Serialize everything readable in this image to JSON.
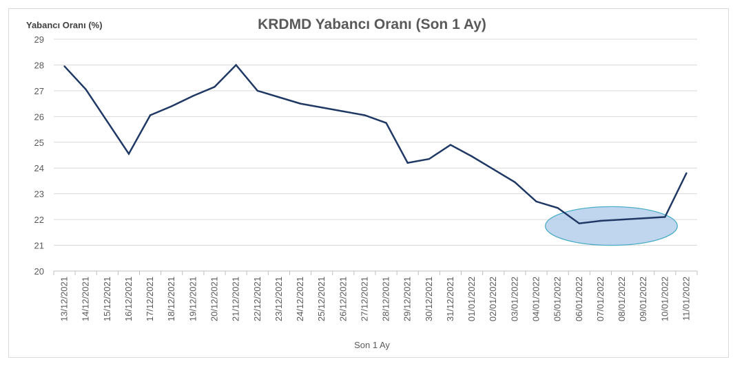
{
  "chart_data": {
    "type": "line",
    "title": "KRDMD Yabancı Oranı (Son 1 Ay)",
    "ylabel": "Yabancı Oranı (%)",
    "xlabel": "Son 1 Ay",
    "ylim": [
      20,
      29
    ],
    "yticks": [
      20,
      21,
      22,
      23,
      24,
      25,
      26,
      27,
      28,
      29
    ],
    "grid": true,
    "categories": [
      "13/12/2021",
      "14/12/2021",
      "15/12/2021",
      "16/12/2021",
      "17/12/2021",
      "18/12/2021",
      "19/12/2021",
      "20/12/2021",
      "21/12/2021",
      "22/12/2021",
      "23/12/2021",
      "24/12/2021",
      "25/12/2021",
      "26/12/2021",
      "27/12/2021",
      "28/12/2021",
      "29/12/2021",
      "30/12/2021",
      "31/12/2021",
      "01/01/2022",
      "02/01/2022",
      "03/01/2022",
      "04/01/2022",
      "05/01/2022",
      "06/01/2022",
      "07/01/2022",
      "08/01/2022",
      "09/01/2022",
      "10/01/2022",
      "11/01/2022"
    ],
    "values": [
      27.95,
      27.05,
      25.8,
      24.55,
      26.05,
      26.4,
      26.8,
      27.15,
      28.0,
      27.0,
      26.75,
      26.5,
      26.35,
      26.2,
      26.05,
      25.75,
      24.2,
      24.35,
      24.9,
      24.45,
      23.95,
      23.45,
      22.7,
      22.45,
      21.85,
      21.95,
      22.0,
      22.05,
      22.1,
      23.8
    ],
    "line_color": "#1f3864",
    "highlight": {
      "shape": "ellipse",
      "from": "05/01/2022",
      "to": "10/01/2022",
      "ymin": 21.0,
      "ymax": 22.5,
      "fill": "#a9c8e8",
      "stroke": "#4bacc6"
    }
  }
}
